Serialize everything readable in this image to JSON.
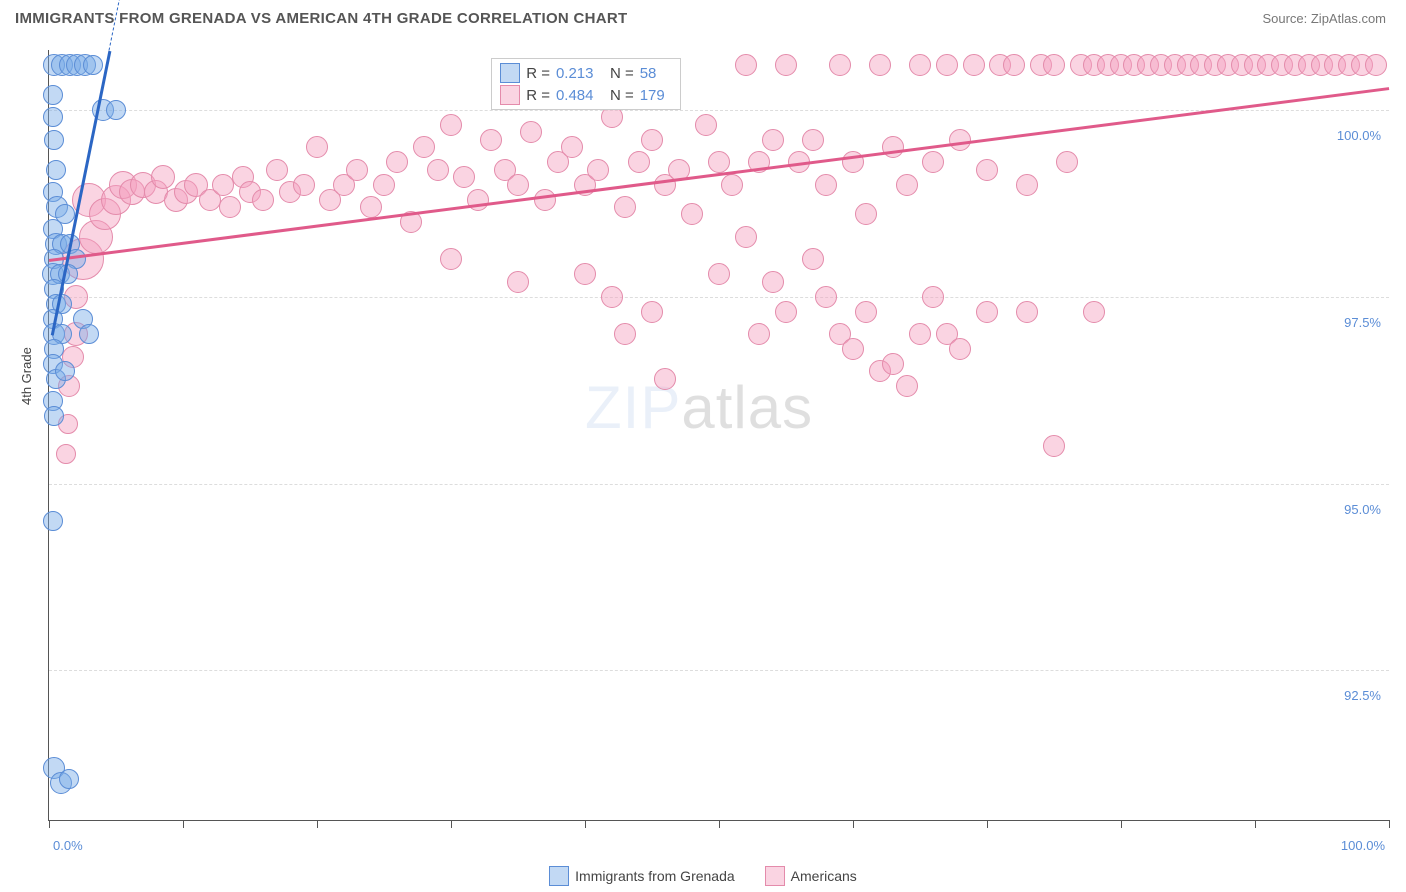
{
  "header": {
    "title": "IMMIGRANTS FROM GRENADA VS AMERICAN 4TH GRADE CORRELATION CHART",
    "source": "Source: ZipAtlas.com"
  },
  "chart": {
    "type": "scatter",
    "ylabel": "4th Grade",
    "background_color": "#ffffff",
    "grid_color": "#dddddd",
    "axis_color": "#555555",
    "tick_label_color": "#5b8dd6",
    "xlim": [
      0,
      100
    ],
    "ylim": [
      90.5,
      100.8
    ],
    "y_gridlines": [
      92.5,
      95.0,
      97.5,
      100.0
    ],
    "y_tick_labels": [
      "92.5%",
      "95.0%",
      "97.5%",
      "100.0%"
    ],
    "x_tick_positions": [
      0,
      10,
      20,
      30,
      40,
      50,
      60,
      70,
      80,
      90,
      100
    ],
    "x_visible_labels": {
      "0": "0.0%",
      "100": "100.0%"
    },
    "watermark": {
      "zip": "ZIP",
      "atlas": "atlas",
      "fontsize": 60,
      "opacity": 0.12
    },
    "series": {
      "grenada": {
        "label": "Immigrants from Grenada",
        "fill": "rgba(120,170,230,0.45)",
        "stroke": "#5b8dd6",
        "R": "0.213",
        "N": "58",
        "trend": {
          "x1": 0.2,
          "y1": 97.0,
          "x2": 4.5,
          "y2": 100.8,
          "stroke": "#2b66c4",
          "width": 2.5,
          "dash_ext": true
        },
        "points": [
          {
            "x": 0.4,
            "y": 100.6,
            "r": 10
          },
          {
            "x": 1.0,
            "y": 100.6,
            "r": 10
          },
          {
            "x": 1.6,
            "y": 100.6,
            "r": 10
          },
          {
            "x": 2.1,
            "y": 100.6,
            "r": 10
          },
          {
            "x": 2.7,
            "y": 100.6,
            "r": 10
          },
          {
            "x": 3.3,
            "y": 100.6,
            "r": 9
          },
          {
            "x": 0.3,
            "y": 100.2,
            "r": 9
          },
          {
            "x": 0.3,
            "y": 99.9,
            "r": 9
          },
          {
            "x": 0.4,
            "y": 99.6,
            "r": 9
          },
          {
            "x": 4.0,
            "y": 100.0,
            "r": 10
          },
          {
            "x": 5.0,
            "y": 100.0,
            "r": 9
          },
          {
            "x": 0.5,
            "y": 99.2,
            "r": 9
          },
          {
            "x": 0.3,
            "y": 98.9,
            "r": 9
          },
          {
            "x": 0.6,
            "y": 98.7,
            "r": 10
          },
          {
            "x": 1.2,
            "y": 98.6,
            "r": 9
          },
          {
            "x": 0.3,
            "y": 98.4,
            "r": 9
          },
          {
            "x": 0.5,
            "y": 98.2,
            "r": 10
          },
          {
            "x": 1.0,
            "y": 98.2,
            "r": 9
          },
          {
            "x": 1.6,
            "y": 98.2,
            "r": 9
          },
          {
            "x": 2.0,
            "y": 98.0,
            "r": 9
          },
          {
            "x": 0.4,
            "y": 98.0,
            "r": 9
          },
          {
            "x": 0.3,
            "y": 97.8,
            "r": 10
          },
          {
            "x": 0.8,
            "y": 97.8,
            "r": 9
          },
          {
            "x": 1.4,
            "y": 97.8,
            "r": 9
          },
          {
            "x": 0.4,
            "y": 97.6,
            "r": 9
          },
          {
            "x": 0.5,
            "y": 97.4,
            "r": 9
          },
          {
            "x": 1.0,
            "y": 97.4,
            "r": 9
          },
          {
            "x": 0.3,
            "y": 97.2,
            "r": 9
          },
          {
            "x": 0.4,
            "y": 97.0,
            "r": 10
          },
          {
            "x": 1.0,
            "y": 97.0,
            "r": 9
          },
          {
            "x": 2.5,
            "y": 97.2,
            "r": 9
          },
          {
            "x": 3.0,
            "y": 97.0,
            "r": 9
          },
          {
            "x": 0.4,
            "y": 96.8,
            "r": 9
          },
          {
            "x": 0.3,
            "y": 96.6,
            "r": 9
          },
          {
            "x": 0.5,
            "y": 96.4,
            "r": 9
          },
          {
            "x": 1.2,
            "y": 96.5,
            "r": 9
          },
          {
            "x": 0.3,
            "y": 96.1,
            "r": 9
          },
          {
            "x": 0.4,
            "y": 95.9,
            "r": 9
          },
          {
            "x": 0.3,
            "y": 94.5,
            "r": 9
          },
          {
            "x": 0.4,
            "y": 91.2,
            "r": 10
          },
          {
            "x": 0.9,
            "y": 91.0,
            "r": 10
          },
          {
            "x": 1.5,
            "y": 91.05,
            "r": 9
          }
        ]
      },
      "americans": {
        "label": "Americans",
        "fill": "rgba(245,160,190,0.45)",
        "stroke": "#e48bab",
        "R": "0.484",
        "N": "179",
        "trend": {
          "x1": 0,
          "y1": 98.0,
          "x2": 100,
          "y2": 100.3,
          "stroke": "#e05a8a",
          "width": 2.5
        },
        "points": [
          {
            "x": 2.5,
            "y": 98.0,
            "r": 20
          },
          {
            "x": 3.5,
            "y": 98.3,
            "r": 16
          },
          {
            "x": 3.0,
            "y": 98.8,
            "r": 16
          },
          {
            "x": 4.2,
            "y": 98.6,
            "r": 15
          },
          {
            "x": 5.0,
            "y": 98.8,
            "r": 14
          },
          {
            "x": 5.5,
            "y": 99.0,
            "r": 13
          },
          {
            "x": 6.2,
            "y": 98.9,
            "r": 12
          },
          {
            "x": 7.0,
            "y": 99.0,
            "r": 12
          },
          {
            "x": 8.0,
            "y": 98.9,
            "r": 11
          },
          {
            "x": 8.5,
            "y": 99.1,
            "r": 11
          },
          {
            "x": 9.5,
            "y": 98.8,
            "r": 11
          },
          {
            "x": 10.2,
            "y": 98.9,
            "r": 11
          },
          {
            "x": 11.0,
            "y": 99.0,
            "r": 11
          },
          {
            "x": 12.0,
            "y": 98.8,
            "r": 10
          },
          {
            "x": 13.0,
            "y": 99.0,
            "r": 10
          },
          {
            "x": 13.5,
            "y": 98.7,
            "r": 10
          },
          {
            "x": 14.5,
            "y": 99.1,
            "r": 10
          },
          {
            "x": 15.0,
            "y": 98.9,
            "r": 10
          },
          {
            "x": 16.0,
            "y": 98.8,
            "r": 10
          },
          {
            "x": 17.0,
            "y": 99.2,
            "r": 10
          },
          {
            "x": 18.0,
            "y": 98.9,
            "r": 10
          },
          {
            "x": 19.0,
            "y": 99.0,
            "r": 10
          },
          {
            "x": 20.0,
            "y": 99.5,
            "r": 10
          },
          {
            "x": 21.0,
            "y": 98.8,
            "r": 10
          },
          {
            "x": 22.0,
            "y": 99.0,
            "r": 10
          },
          {
            "x": 23.0,
            "y": 99.2,
            "r": 10
          },
          {
            "x": 24.0,
            "y": 98.7,
            "r": 10
          },
          {
            "x": 25.0,
            "y": 99.0,
            "r": 10
          },
          {
            "x": 26.0,
            "y": 99.3,
            "r": 10
          },
          {
            "x": 27.0,
            "y": 98.5,
            "r": 10
          },
          {
            "x": 28.0,
            "y": 99.5,
            "r": 10
          },
          {
            "x": 29.0,
            "y": 99.2,
            "r": 10
          },
          {
            "x": 30.0,
            "y": 99.8,
            "r": 10
          },
          {
            "x": 31.0,
            "y": 99.1,
            "r": 10
          },
          {
            "x": 32.0,
            "y": 98.8,
            "r": 10
          },
          {
            "x": 33.0,
            "y": 99.6,
            "r": 10
          },
          {
            "x": 34.0,
            "y": 99.2,
            "r": 10
          },
          {
            "x": 35.0,
            "y": 99.0,
            "r": 10
          },
          {
            "x": 36.0,
            "y": 99.7,
            "r": 10
          },
          {
            "x": 37.0,
            "y": 98.8,
            "r": 10
          },
          {
            "x": 38.0,
            "y": 99.3,
            "r": 10
          },
          {
            "x": 39.0,
            "y": 99.5,
            "r": 10
          },
          {
            "x": 40.0,
            "y": 99.0,
            "r": 10
          },
          {
            "x": 41.0,
            "y": 99.2,
            "r": 10
          },
          {
            "x": 42.0,
            "y": 99.9,
            "r": 10
          },
          {
            "x": 43.0,
            "y": 98.7,
            "r": 10
          },
          {
            "x": 44.0,
            "y": 99.3,
            "r": 10
          },
          {
            "x": 45.0,
            "y": 99.6,
            "r": 10
          },
          {
            "x": 46.0,
            "y": 99.0,
            "r": 10
          },
          {
            "x": 47.0,
            "y": 99.2,
            "r": 10
          },
          {
            "x": 48.0,
            "y": 98.6,
            "r": 10
          },
          {
            "x": 49.0,
            "y": 99.8,
            "r": 10
          },
          {
            "x": 50.0,
            "y": 99.3,
            "r": 10
          },
          {
            "x": 51.0,
            "y": 99.0,
            "r": 10
          },
          {
            "x": 52.0,
            "y": 100.6,
            "r": 10
          },
          {
            "x": 53.0,
            "y": 99.3,
            "r": 10
          },
          {
            "x": 54.0,
            "y": 99.6,
            "r": 10
          },
          {
            "x": 55.0,
            "y": 100.6,
            "r": 10
          },
          {
            "x": 56.0,
            "y": 99.3,
            "r": 10
          },
          {
            "x": 57.0,
            "y": 99.6,
            "r": 10
          },
          {
            "x": 58.0,
            "y": 99.0,
            "r": 10
          },
          {
            "x": 59.0,
            "y": 100.6,
            "r": 10
          },
          {
            "x": 60.0,
            "y": 99.3,
            "r": 10
          },
          {
            "x": 61.0,
            "y": 98.6,
            "r": 10
          },
          {
            "x": 62.0,
            "y": 100.6,
            "r": 10
          },
          {
            "x": 63.0,
            "y": 99.5,
            "r": 10
          },
          {
            "x": 64.0,
            "y": 99.0,
            "r": 10
          },
          {
            "x": 65.0,
            "y": 100.6,
            "r": 10
          },
          {
            "x": 66.0,
            "y": 99.3,
            "r": 10
          },
          {
            "x": 67.0,
            "y": 100.6,
            "r": 10
          },
          {
            "x": 68.0,
            "y": 99.6,
            "r": 10
          },
          {
            "x": 69.0,
            "y": 100.6,
            "r": 10
          },
          {
            "x": 70.0,
            "y": 99.2,
            "r": 10
          },
          {
            "x": 71.0,
            "y": 100.6,
            "r": 10
          },
          {
            "x": 72.0,
            "y": 100.6,
            "r": 10
          },
          {
            "x": 73.0,
            "y": 99.0,
            "r": 10
          },
          {
            "x": 74.0,
            "y": 100.6,
            "r": 10
          },
          {
            "x": 75.0,
            "y": 100.6,
            "r": 10
          },
          {
            "x": 76.0,
            "y": 99.3,
            "r": 10
          },
          {
            "x": 77.0,
            "y": 100.6,
            "r": 10
          },
          {
            "x": 78.0,
            "y": 100.6,
            "r": 10
          },
          {
            "x": 79.0,
            "y": 100.6,
            "r": 10
          },
          {
            "x": 80.0,
            "y": 100.6,
            "r": 10
          },
          {
            "x": 81.0,
            "y": 100.6,
            "r": 10
          },
          {
            "x": 82.0,
            "y": 100.6,
            "r": 10
          },
          {
            "x": 83.0,
            "y": 100.6,
            "r": 10
          },
          {
            "x": 84.0,
            "y": 100.6,
            "r": 10
          },
          {
            "x": 85.0,
            "y": 100.6,
            "r": 10
          },
          {
            "x": 86.0,
            "y": 100.6,
            "r": 10
          },
          {
            "x": 87.0,
            "y": 100.6,
            "r": 10
          },
          {
            "x": 88.0,
            "y": 100.6,
            "r": 10
          },
          {
            "x": 89.0,
            "y": 100.6,
            "r": 10
          },
          {
            "x": 90.0,
            "y": 100.6,
            "r": 10
          },
          {
            "x": 91.0,
            "y": 100.6,
            "r": 10
          },
          {
            "x": 92.0,
            "y": 100.6,
            "r": 10
          },
          {
            "x": 93.0,
            "y": 100.6,
            "r": 10
          },
          {
            "x": 94.0,
            "y": 100.6,
            "r": 10
          },
          {
            "x": 95.0,
            "y": 100.6,
            "r": 10
          },
          {
            "x": 96.0,
            "y": 100.6,
            "r": 10
          },
          {
            "x": 97.0,
            "y": 100.6,
            "r": 10
          },
          {
            "x": 98.0,
            "y": 100.6,
            "r": 10
          },
          {
            "x": 99.0,
            "y": 100.6,
            "r": 10
          },
          {
            "x": 2.0,
            "y": 97.5,
            "r": 11
          },
          {
            "x": 2.0,
            "y": 97.0,
            "r": 11
          },
          {
            "x": 1.8,
            "y": 96.7,
            "r": 10
          },
          {
            "x": 1.5,
            "y": 96.3,
            "r": 10
          },
          {
            "x": 1.4,
            "y": 95.8,
            "r": 9
          },
          {
            "x": 1.3,
            "y": 95.4,
            "r": 9
          },
          {
            "x": 30.0,
            "y": 98.0,
            "r": 10
          },
          {
            "x": 35.0,
            "y": 97.7,
            "r": 10
          },
          {
            "x": 40.0,
            "y": 97.8,
            "r": 10
          },
          {
            "x": 42.0,
            "y": 97.5,
            "r": 10
          },
          {
            "x": 43.0,
            "y": 97.0,
            "r": 10
          },
          {
            "x": 45.0,
            "y": 97.3,
            "r": 10
          },
          {
            "x": 46.0,
            "y": 96.4,
            "r": 10
          },
          {
            "x": 50.0,
            "y": 97.8,
            "r": 10
          },
          {
            "x": 52.0,
            "y": 98.3,
            "r": 10
          },
          {
            "x": 53.0,
            "y": 97.0,
            "r": 10
          },
          {
            "x": 54.0,
            "y": 97.7,
            "r": 10
          },
          {
            "x": 55.0,
            "y": 97.3,
            "r": 10
          },
          {
            "x": 57.0,
            "y": 98.0,
            "r": 10
          },
          {
            "x": 58.0,
            "y": 97.5,
            "r": 10
          },
          {
            "x": 59.0,
            "y": 97.0,
            "r": 10
          },
          {
            "x": 60.0,
            "y": 96.8,
            "r": 10
          },
          {
            "x": 61.0,
            "y": 97.3,
            "r": 10
          },
          {
            "x": 62.0,
            "y": 96.5,
            "r": 10
          },
          {
            "x": 63.0,
            "y": 96.6,
            "r": 10
          },
          {
            "x": 64.0,
            "y": 96.3,
            "r": 10
          },
          {
            "x": 65.0,
            "y": 97.0,
            "r": 10
          },
          {
            "x": 66.0,
            "y": 97.5,
            "r": 10
          },
          {
            "x": 67.0,
            "y": 97.0,
            "r": 10
          },
          {
            "x": 68.0,
            "y": 96.8,
            "r": 10
          },
          {
            "x": 70.0,
            "y": 97.3,
            "r": 10
          },
          {
            "x": 73.0,
            "y": 97.3,
            "r": 10
          },
          {
            "x": 75.0,
            "y": 95.5,
            "r": 10
          },
          {
            "x": 78.0,
            "y": 97.3,
            "r": 10
          }
        ]
      }
    },
    "legend_stats_labels": {
      "R": "R =",
      "N": "N ="
    }
  }
}
